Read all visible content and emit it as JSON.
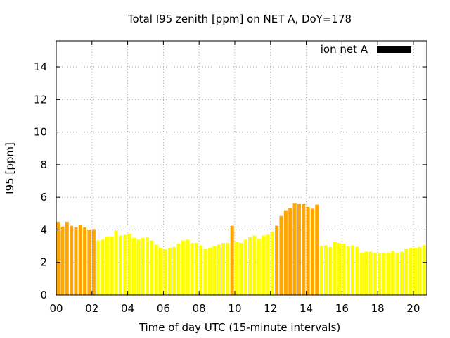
{
  "chart_data": {
    "type": "bar",
    "title": "Total I95 zenith [ppm] on NET A, DoY=178",
    "xlabel": "Time of day UTC (15-minute intervals)",
    "ylabel": "I95 [ppm]",
    "xlim": [
      0,
      20.75
    ],
    "ylim": [
      0,
      15.6
    ],
    "x_ticks": [
      0,
      2,
      4,
      6,
      8,
      10,
      12,
      14,
      16,
      18,
      20
    ],
    "x_tick_labels": [
      "00",
      "02",
      "04",
      "06",
      "08",
      "10",
      "12",
      "14",
      "16",
      "18",
      "20"
    ],
    "y_ticks": [
      0,
      2,
      4,
      6,
      8,
      10,
      12,
      14
    ],
    "y_tick_labels": [
      "0",
      "2",
      "4",
      "6",
      "8",
      "10",
      "12",
      "14"
    ],
    "grid": true,
    "legend": {
      "position": "top-right",
      "entries": [
        {
          "label": "ion net A",
          "color": "#000000"
        }
      ]
    },
    "colors": {
      "high": "#ffa500",
      "normal": "#ffff00",
      "legend_swatch": "#000000"
    },
    "bar_interval_hours": 0.25,
    "series": [
      {
        "x": [
          0.0,
          0.25,
          0.5,
          0.75,
          1.0,
          1.25,
          1.5,
          1.75,
          2.0,
          2.25,
          2.5,
          2.75,
          3.0,
          3.25,
          3.5,
          3.75,
          4.0,
          4.25,
          4.5,
          4.75,
          5.0,
          5.25,
          5.5,
          5.75,
          6.0,
          6.25,
          6.5,
          6.75,
          7.0,
          7.25,
          7.5,
          7.75,
          8.0,
          8.25,
          8.5,
          8.75,
          9.0,
          9.25,
          9.5,
          9.75,
          10.0,
          10.25,
          10.5,
          10.75,
          11.0,
          11.25,
          11.5,
          11.75,
          12.0,
          12.25,
          12.5,
          12.75,
          13.0,
          13.25,
          13.5,
          13.75,
          14.0,
          14.25,
          14.5,
          14.75,
          15.0,
          15.25,
          15.5,
          15.75,
          16.0,
          16.25,
          16.5,
          16.75,
          17.0,
          17.25,
          17.5,
          17.75,
          18.0,
          18.25,
          18.5,
          18.75,
          19.0,
          19.25,
          19.5,
          19.75,
          20.0,
          20.25,
          20.5
        ],
        "values": [
          4.5,
          4.2,
          4.5,
          4.25,
          4.15,
          4.3,
          4.15,
          4.0,
          4.05,
          3.35,
          3.4,
          3.6,
          3.6,
          3.95,
          3.65,
          3.7,
          3.75,
          3.5,
          3.4,
          3.5,
          3.55,
          3.35,
          3.1,
          2.9,
          2.8,
          2.9,
          2.95,
          3.15,
          3.35,
          3.4,
          3.2,
          3.2,
          3.05,
          2.85,
          2.9,
          3.0,
          3.1,
          3.2,
          3.2,
          4.25,
          3.25,
          3.2,
          3.4,
          3.55,
          3.65,
          3.45,
          3.65,
          3.7,
          3.9,
          4.25,
          4.85,
          5.2,
          5.35,
          5.65,
          5.6,
          5.6,
          5.4,
          5.3,
          5.55,
          3.0,
          3.05,
          2.95,
          3.25,
          3.2,
          3.15,
          3.0,
          3.05,
          2.95,
          2.6,
          2.65,
          2.65,
          2.6,
          2.55,
          2.6,
          2.6,
          2.7,
          2.6,
          2.65,
          2.85,
          2.9,
          2.9,
          2.95,
          3.05
        ],
        "colors": [
          "#ffa500",
          "#ffa500",
          "#ffa500",
          "#ffa500",
          "#ffa500",
          "#ffa500",
          "#ffa500",
          "#ffa500",
          "#ffa500",
          "#ffff00",
          "#ffff00",
          "#ffff00",
          "#ffff00",
          "#ffff00",
          "#ffff00",
          "#ffff00",
          "#ffff00",
          "#ffff00",
          "#ffff00",
          "#ffff00",
          "#ffff00",
          "#ffff00",
          "#ffff00",
          "#ffff00",
          "#ffff00",
          "#ffff00",
          "#ffff00",
          "#ffff00",
          "#ffff00",
          "#ffff00",
          "#ffff00",
          "#ffff00",
          "#ffff00",
          "#ffff00",
          "#ffff00",
          "#ffff00",
          "#ffff00",
          "#ffff00",
          "#ffff00",
          "#ffa500",
          "#ffff00",
          "#ffff00",
          "#ffff00",
          "#ffff00",
          "#ffff00",
          "#ffff00",
          "#ffff00",
          "#ffff00",
          "#ffff00",
          "#ffa500",
          "#ffa500",
          "#ffa500",
          "#ffa500",
          "#ffa500",
          "#ffa500",
          "#ffa500",
          "#ffa500",
          "#ffa500",
          "#ffa500",
          "#ffff00",
          "#ffff00",
          "#ffff00",
          "#ffff00",
          "#ffff00",
          "#ffff00",
          "#ffff00",
          "#ffff00",
          "#ffff00",
          "#ffff00",
          "#ffff00",
          "#ffff00",
          "#ffff00",
          "#ffff00",
          "#ffff00",
          "#ffff00",
          "#ffff00",
          "#ffff00",
          "#ffff00",
          "#ffff00",
          "#ffff00",
          "#ffff00",
          "#ffff00",
          "#ffff00"
        ]
      }
    ]
  }
}
